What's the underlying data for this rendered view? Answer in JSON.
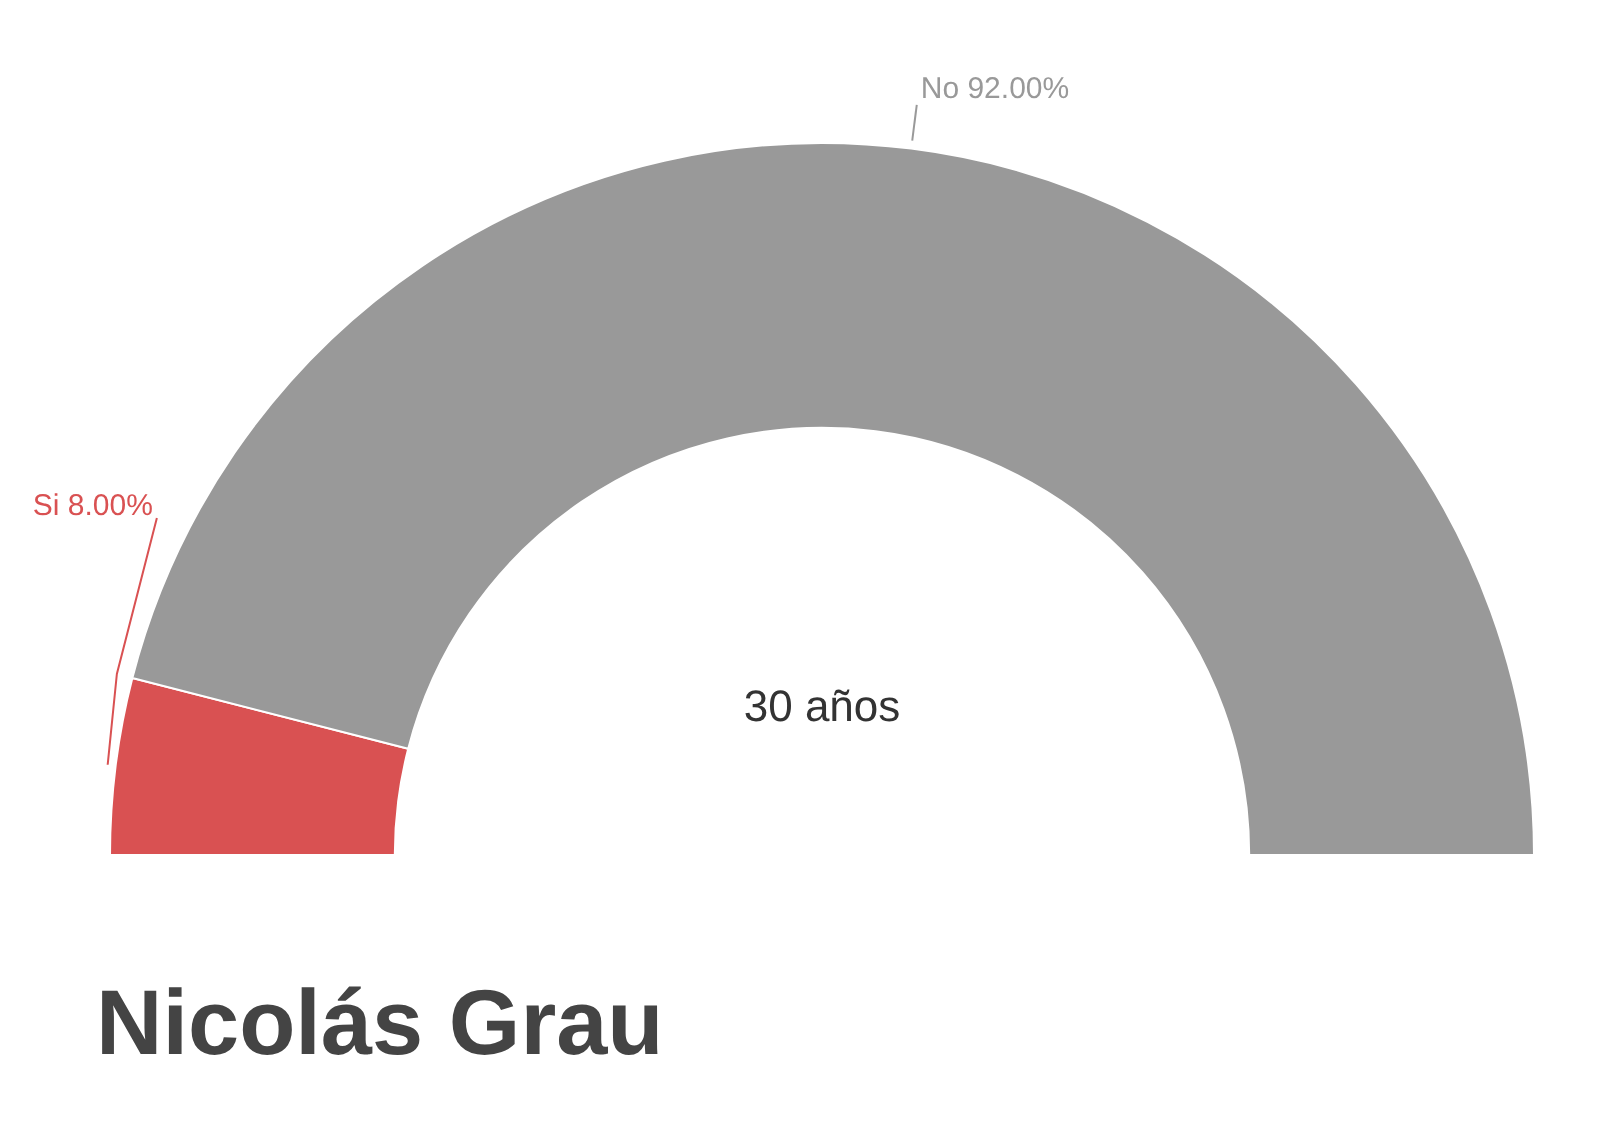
{
  "chart_data": {
    "type": "donut",
    "title": "Nicolás Grau",
    "categories": [
      "Si",
      "No"
    ],
    "values": [
      8,
      92
    ],
    "value_labels": [
      "8.00%",
      "92.00%"
    ],
    "colors": [
      "#d95152",
      "#999999"
    ],
    "annotations": [
      "30 años"
    ],
    "legend": false
  }
}
